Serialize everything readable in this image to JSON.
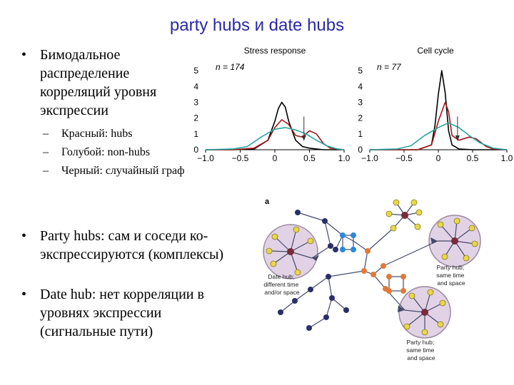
{
  "slide": {
    "title": "party hubs и date hubs",
    "bullet_char": "•",
    "dash_char": "–",
    "bullet1": "Бимодальное распределение корреляций уровня экспрессии",
    "sub_items": [
      "Красный: hubs",
      "Голубой: non-hubs",
      "Черный: случайный граф"
    ],
    "bullet2": "Party hubs: сам и соседи ко-экспрессируются (комплексы)",
    "bullet3": "Date hub: нет корреляции в уровнях экспрессии (сигнальные пути)"
  },
  "chart_data": [
    {
      "type": "line",
      "title": "Stress response",
      "annotation": "n = 174",
      "xlim": [
        -1.0,
        1.0
      ],
      "ylim": [
        0,
        5.5
      ],
      "x_ticks": [
        "−1.0",
        "−0.5",
        "0",
        "0.5",
        "1.0"
      ],
      "y_ticks": [
        "0",
        "1",
        "2",
        "3",
        "4",
        "5"
      ],
      "series": [
        {
          "color": "#000000",
          "x": [
            -1.0,
            -0.6,
            -0.3,
            -0.1,
            0.0,
            0.05,
            0.1,
            0.15,
            0.2,
            0.3,
            0.4,
            0.5,
            0.6,
            0.7,
            0.8,
            1.0
          ],
          "y": [
            0,
            0,
            0.05,
            0.6,
            1.8,
            2.6,
            3.0,
            2.7,
            1.8,
            0.6,
            0.2,
            0.1,
            0.05,
            0,
            0,
            0
          ]
        },
        {
          "color": "#a01818",
          "x": [
            -1.0,
            -0.6,
            -0.3,
            -0.1,
            0.0,
            0.1,
            0.2,
            0.3,
            0.4,
            0.5,
            0.6,
            0.7,
            0.8,
            1.0
          ],
          "y": [
            0,
            0,
            0.1,
            0.6,
            1.4,
            1.9,
            1.6,
            0.9,
            0.8,
            1.2,
            1.0,
            0.4,
            0.1,
            0
          ]
        },
        {
          "color": "#2aa5a5",
          "x": [
            -1.0,
            -0.6,
            -0.4,
            -0.2,
            0.0,
            0.15,
            0.3,
            0.45,
            0.6,
            0.75,
            0.9,
            1.0
          ],
          "y": [
            0,
            0.05,
            0.2,
            0.8,
            1.3,
            1.4,
            1.25,
            1.0,
            0.6,
            0.25,
            0.05,
            0
          ]
        }
      ],
      "marker_x": 0.42
    },
    {
      "type": "line",
      "title": "Cell cycle",
      "annotation": "n = 77",
      "xlim": [
        -1.0,
        1.0
      ],
      "ylim": [
        0,
        5.5
      ],
      "x_ticks": [
        "−1.0",
        "−0.5",
        "0",
        "0.5",
        "1.0"
      ],
      "y_ticks": [
        "0",
        "1",
        "2",
        "3",
        "4",
        "5"
      ],
      "series": [
        {
          "color": "#000000",
          "x": [
            -1.0,
            -0.3,
            -0.1,
            -0.05,
            0.0,
            0.05,
            0.1,
            0.15,
            0.2,
            0.3,
            0.5,
            1.0
          ],
          "y": [
            0,
            0,
            0.3,
            1.5,
            3.5,
            5.0,
            3.6,
            1.2,
            0.3,
            0.05,
            0,
            0
          ]
        },
        {
          "color": "#a01818",
          "x": [
            -1.0,
            -0.3,
            -0.1,
            0.0,
            0.1,
            0.15,
            0.2,
            0.3,
            0.45,
            0.55,
            0.7,
            0.8,
            1.0
          ],
          "y": [
            0,
            0,
            0.3,
            1.8,
            3.0,
            2.4,
            0.9,
            0.6,
            0.8,
            0.7,
            0.2,
            0.05,
            0
          ]
        },
        {
          "color": "#2aa5a5",
          "x": [
            -1.0,
            -0.6,
            -0.4,
            -0.2,
            0.0,
            0.15,
            0.3,
            0.45,
            0.6,
            0.8,
            1.0
          ],
          "y": [
            0,
            0.05,
            0.25,
            0.9,
            1.4,
            1.7,
            1.4,
            0.9,
            0.45,
            0.1,
            0
          ]
        }
      ],
      "marker_x": 0.28
    }
  ],
  "network": {
    "panel_label": "a",
    "date_hub_label": [
      "Date hub;",
      "different time",
      "and/or space"
    ],
    "party_hub_label_1": [
      "Party hub;",
      "same time",
      "and space"
    ],
    "party_hub_label_2": [
      "Party hub;",
      "same time",
      "and space"
    ],
    "colors": {
      "circle_fill": "#e2d2e6",
      "circle_stroke": "#9a8aa0",
      "hub": "#7a2a3a",
      "node_yellow": "#e8d84a",
      "node_navy": "#2a2f6a",
      "node_orange": "#e07a3a",
      "node_blue": "#2a8ad8",
      "edge": "#444a6a"
    }
  }
}
